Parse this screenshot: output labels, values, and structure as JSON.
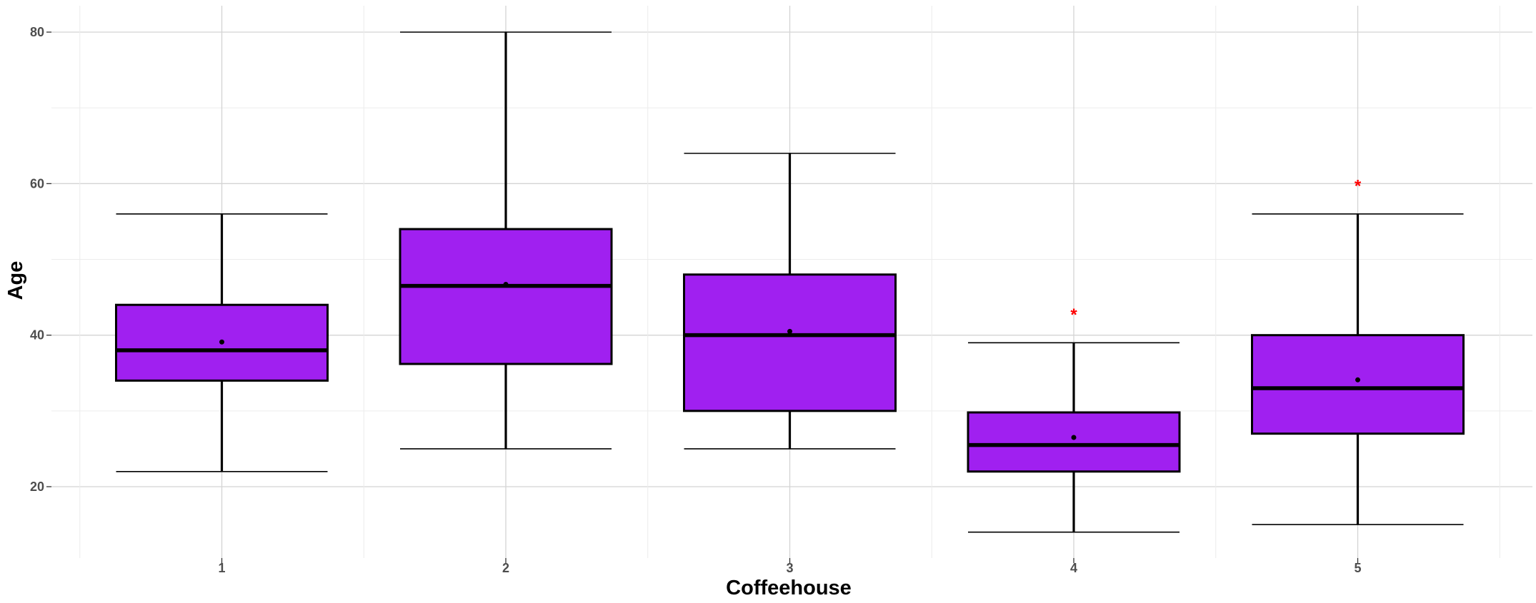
{
  "chart_data": {
    "type": "boxplot",
    "xlabel": "Coffeehouse",
    "ylabel": "Age",
    "categories": [
      "1",
      "2",
      "3",
      "4",
      "5"
    ],
    "ylim": [
      11,
      83
    ],
    "yticks": [
      20,
      40,
      60,
      80
    ],
    "grid": true,
    "box_fill": "#a020f0",
    "outlier_color": "#ff0000",
    "outlier_marker": "*",
    "boxes": [
      {
        "category": "1",
        "whisker_low": 22,
        "q1": 34,
        "median": 38,
        "q3": 44,
        "whisker_high": 56,
        "mean": 39.1,
        "outliers": []
      },
      {
        "category": "2",
        "whisker_low": 25,
        "q1": 36.2,
        "median": 46.5,
        "q3": 54,
        "whisker_high": 80,
        "mean": 46.7,
        "outliers": []
      },
      {
        "category": "3",
        "whisker_low": 25,
        "q1": 30,
        "median": 40,
        "q3": 48,
        "whisker_high": 64,
        "mean": 40.5,
        "outliers": []
      },
      {
        "category": "4",
        "whisker_low": 14,
        "q1": 22,
        "median": 25.5,
        "q3": 29.8,
        "whisker_high": 39,
        "mean": 26.5,
        "outliers": [
          43
        ]
      },
      {
        "category": "5",
        "whisker_low": 15,
        "q1": 27,
        "median": 33,
        "q3": 40,
        "whisker_high": 56,
        "mean": 34.1,
        "outliers": [
          60
        ]
      }
    ]
  }
}
